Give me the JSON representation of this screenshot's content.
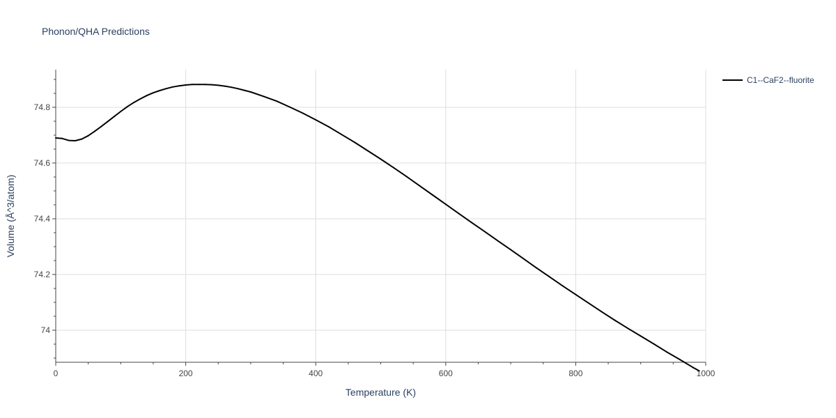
{
  "chart_data": {
    "type": "line",
    "title": "Phonon/QHA Predictions",
    "xlabel": "Temperature (K)",
    "ylabel": "Volume (Å^3/atom)",
    "xlim": [
      0,
      1000
    ],
    "ylim": [
      73.885,
      74.935
    ],
    "x_ticks": [
      0,
      200,
      400,
      600,
      800,
      1000
    ],
    "x_tick_labels": [
      "0",
      "200",
      "400",
      "600",
      "800",
      "1000"
    ],
    "y_ticks": [
      74.0,
      74.2,
      74.4,
      74.6,
      74.8
    ],
    "y_tick_labels": [
      "74",
      "74.2",
      "74.4",
      "74.6",
      "74.8"
    ],
    "grid": true,
    "legend_position": "top-right",
    "series": [
      {
        "name": "C1--CaF2--fluorite",
        "color": "#000000",
        "x": [
          0,
          10,
          20,
          30,
          40,
          50,
          60,
          70,
          80,
          90,
          100,
          110,
          120,
          130,
          140,
          150,
          160,
          170,
          180,
          190,
          200,
          210,
          220,
          230,
          240,
          250,
          260,
          270,
          280,
          290,
          300,
          320,
          340,
          360,
          380,
          400,
          420,
          440,
          460,
          480,
          500,
          520,
          540,
          560,
          580,
          600,
          620,
          640,
          660,
          680,
          700,
          720,
          740,
          760,
          780,
          800,
          820,
          840,
          860,
          880,
          900,
          920,
          940,
          960,
          980,
          990
        ],
        "y": [
          74.69,
          74.688,
          74.681,
          74.68,
          74.686,
          74.698,
          74.714,
          74.731,
          74.749,
          74.767,
          74.785,
          74.802,
          74.817,
          74.83,
          74.842,
          74.852,
          74.86,
          74.867,
          74.873,
          74.877,
          74.88,
          74.882,
          74.882,
          74.882,
          74.881,
          74.879,
          74.876,
          74.872,
          74.867,
          74.861,
          74.855,
          74.839,
          74.822,
          74.801,
          74.779,
          74.755,
          74.73,
          74.702,
          74.674,
          74.644,
          74.614,
          74.583,
          74.551,
          74.518,
          74.485,
          74.452,
          74.419,
          74.386,
          74.354,
          74.321,
          74.289,
          74.256,
          74.223,
          74.191,
          74.159,
          74.128,
          74.097,
          74.066,
          74.036,
          74.007,
          73.979,
          73.951,
          73.922,
          73.895,
          73.867,
          73.854
        ]
      }
    ]
  }
}
